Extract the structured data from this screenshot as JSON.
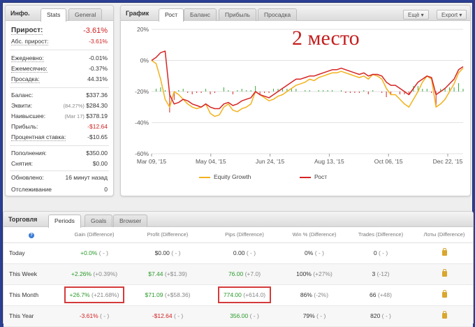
{
  "info": {
    "title": "Инфо.",
    "tabs": [
      "Stats",
      "General"
    ],
    "growth_label": "Прирост:",
    "growth_value": "-3.61%",
    "abs_growth_label": "Абс. прирост:",
    "abs_growth_value": "-3.61%",
    "daily_label": "Ежедневно:",
    "daily_value": "-0.01%",
    "monthly_label": "Ежемесячно:",
    "monthly_value": "-0.37%",
    "drawdown_label": "Просадка:",
    "drawdown_value": "44.31%",
    "balance_label": "Баланс:",
    "balance_value": "$337.36",
    "equity_label": "Эквити:",
    "equity_sub": "(84.27%)",
    "equity_value": "$284.30",
    "highest_label": "Наивысшее:",
    "highest_sub": "(Mar 17)",
    "highest_value": "$378.19",
    "profit_label": "Прибыль:",
    "profit_value": "-$12.64",
    "interest_label": "Процентная ставка:",
    "interest_value": "-$10.65",
    "deposits_label": "Пополнения:",
    "deposits_value": "$350.00",
    "withdrawals_label": "Снятия:",
    "withdrawals_value": "$0.00",
    "updated_label": "Обновлено:",
    "updated_value": "16 минут назад",
    "tracking_label": "Отслеживание",
    "tracking_value": "0"
  },
  "graph": {
    "title": "График",
    "tabs": [
      "Рост",
      "Баланс",
      "Прибыль",
      "Просадка"
    ],
    "more_label": "Ещё",
    "export_label": "Export",
    "overlay_text": "2 место"
  },
  "chart_data": {
    "type": "line",
    "y_ticks": [
      "20%",
      "0%",
      "-20%",
      "-40%",
      "-60%"
    ],
    "ylim": [
      -60,
      20
    ],
    "x_ticks": [
      "Mar 09, '15",
      "May 04, '15",
      "Jun 24, '15",
      "Aug 13, '15",
      "Oct 06, '15",
      "Dec 22, '15"
    ],
    "grid": true,
    "legend_position": "bottom",
    "series": [
      {
        "name": "Equity Growth",
        "color": "#f2b21c",
        "values": [
          0,
          -2,
          -12,
          -25,
          -30,
          -20,
          -22,
          -25,
          -28,
          -30,
          -31,
          -30,
          -28,
          -34,
          -36,
          -35,
          -30,
          -28,
          -32,
          -33,
          -31,
          -30,
          -28,
          -20,
          -22,
          -24,
          -26,
          -25,
          -23,
          -22,
          -20,
          -18,
          -16,
          -15,
          -14,
          -12,
          -13,
          -11,
          -10,
          -9,
          -8,
          -8,
          -7,
          -8,
          -9,
          -10,
          -11,
          -10,
          -12,
          -9,
          -10,
          -12,
          -18,
          -22,
          -22,
          -25,
          -28,
          -30,
          -25,
          -20,
          -14,
          -10,
          -12,
          -30,
          -28,
          -25,
          -20,
          -15,
          -8,
          -5
        ]
      },
      {
        "name": "Рост",
        "color": "#d62424",
        "values": [
          0,
          2,
          5,
          6,
          -22,
          -28,
          -27,
          -25,
          -26,
          -28,
          -29,
          -30,
          -28,
          -30,
          -31,
          -31,
          -28,
          -27,
          -29,
          -28,
          -26,
          -25,
          -24,
          -20,
          -22,
          -23,
          -24,
          -22,
          -20,
          -18,
          -16,
          -14,
          -12,
          -12,
          -11,
          -10,
          -10,
          -9,
          -8,
          -7,
          -6,
          -6,
          -5,
          -6,
          -7,
          -8,
          -9,
          -8,
          -10,
          -9,
          -9,
          -10,
          -14,
          -16,
          -16,
          -18,
          -20,
          -22,
          -18,
          -14,
          -12,
          -10,
          -11,
          -22,
          -20,
          -18,
          -15,
          -12,
          -6,
          -4
        ]
      }
    ]
  },
  "trading": {
    "title": "Торговля",
    "tabs": [
      "Periods",
      "Goals",
      "Browser"
    ],
    "columns": [
      "Gain (Difference)",
      "Profit (Difference)",
      "Pips (Difference)",
      "Win % (Difference)",
      "Trades (Difference)",
      "Лоты (Difference)"
    ],
    "rows": [
      {
        "label": "Today",
        "gain": "+0.0%",
        "gain_diff": "( - )",
        "profit": "$0.00",
        "profit_diff": "( - )",
        "pips": "0.00",
        "pips_diff": "( - )",
        "win": "0%",
        "win_diff": "( - )",
        "trades": "0",
        "trades_diff": "( - )"
      },
      {
        "label": "This Week",
        "gain": "+2.26%",
        "gain_diff": "(+0.39%)",
        "profit": "$7.44",
        "profit_diff": "(+$1.39)",
        "pips": "76.00",
        "pips_diff": "(+7.0)",
        "win": "100%",
        "win_diff": "(+27%)",
        "trades": "3",
        "trades_diff": "(-12)"
      },
      {
        "label": "This Month",
        "gain": "+26.7%",
        "gain_diff": "(+21.68%)",
        "profit": "$71.09",
        "profit_diff": "(+$58.36)",
        "pips": "774.00",
        "pips_diff": "(+614.0)",
        "win": "86%",
        "win_diff": "(-2%)",
        "trades": "66",
        "trades_diff": "(+48)"
      },
      {
        "label": "This Year",
        "gain": "-3.61%",
        "gain_diff": "( - )",
        "profit": "-$12.64",
        "profit_diff": "( - )",
        "pips": "356.00",
        "pips_diff": "( - )",
        "win": "79%",
        "win_diff": "( - )",
        "trades": "820",
        "trades_diff": "( - )"
      }
    ]
  }
}
